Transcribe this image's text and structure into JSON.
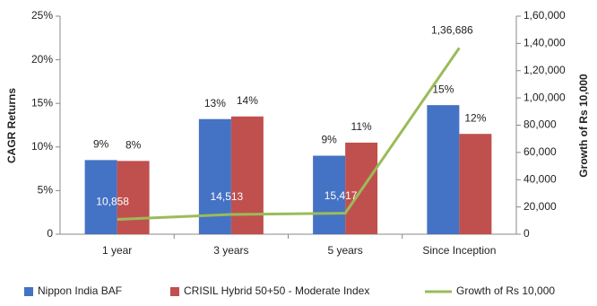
{
  "chart_data": {
    "type": "bar-line",
    "y_label": "CAGR Returns",
    "y2_label": "Growth of Rs 10,000",
    "categories": [
      "1 year",
      "3 years",
      "5 years",
      "Since Inception"
    ],
    "series": [
      {
        "name": "Nippon India BAF",
        "type": "bar",
        "color": "#4472c4",
        "values": [
          8.5,
          13.2,
          9.0,
          14.8
        ],
        "value_labels": [
          "9%",
          "13%",
          "9%",
          "15%"
        ]
      },
      {
        "name": "CRISIL Hybrid 50+50 - Moderate Index",
        "type": "bar",
        "color": "#c0504d",
        "values": [
          8.4,
          13.5,
          10.5,
          11.5
        ],
        "value_labels": [
          "8%",
          "14%",
          "11%",
          "12%"
        ]
      },
      {
        "name": "Growth of Rs 10,000",
        "type": "line",
        "axis": "y2",
        "color": "#9bbb59",
        "values": [
          10858,
          14513,
          15417,
          136686
        ],
        "value_labels": [
          "10,858",
          "14,513",
          "15,417",
          "1,36,686"
        ]
      }
    ],
    "ylim": [
      0,
      25
    ],
    "yticks": [
      0,
      {
        "value": 5,
        "label": "5%"
      },
      {
        "value": 10,
        "label": "10%"
      },
      {
        "value": 15,
        "label": "15%"
      },
      {
        "value": 20,
        "label": "20%"
      },
      {
        "value": 25,
        "label": "25%"
      }
    ],
    "y2lim": [
      0,
      160000
    ],
    "y2ticks": [
      0,
      {
        "value": 20000,
        "label": "20,000"
      },
      {
        "value": 40000,
        "label": "40,000"
      },
      {
        "value": 60000,
        "label": "60,000"
      },
      {
        "value": 80000,
        "label": "80,000"
      },
      {
        "value": 100000,
        "label": "1,00,000"
      },
      {
        "value": 120000,
        "label": "1,20,000"
      },
      {
        "value": 140000,
        "label": "1,40,000"
      },
      {
        "value": 160000,
        "label": "1,60,000"
      }
    ],
    "ytick_labels_suffix_note": null
  }
}
